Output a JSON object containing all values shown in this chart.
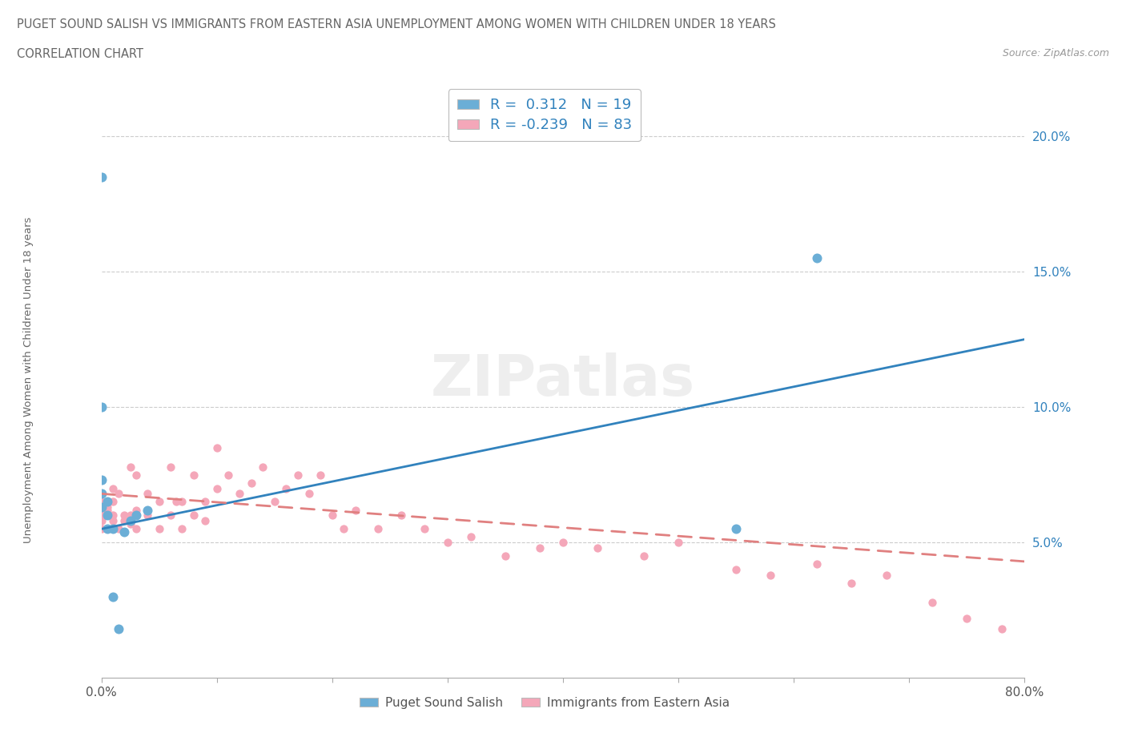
{
  "title_line1": "PUGET SOUND SALISH VS IMMIGRANTS FROM EASTERN ASIA UNEMPLOYMENT AMONG WOMEN WITH CHILDREN UNDER 18 YEARS",
  "title_line2": "CORRELATION CHART",
  "source": "Source: ZipAtlas.com",
  "ylabel": "Unemployment Among Women with Children Under 18 years",
  "yticks": [
    "20.0%",
    "15.0%",
    "10.0%",
    "5.0%"
  ],
  "ytick_vals": [
    0.2,
    0.15,
    0.1,
    0.05
  ],
  "xlim": [
    0.0,
    0.8
  ],
  "ylim": [
    0.0,
    0.22
  ],
  "legend_blue_label": "R =  0.312   N = 19",
  "legend_pink_label": "R = -0.239   N = 83",
  "legend_bottom_blue": "Puget Sound Salish",
  "legend_bottom_pink": "Immigrants from Eastern Asia",
  "watermark": "ZIPatlas",
  "blue_color": "#6baed6",
  "pink_color": "#f4a7b9",
  "trendline_blue_color": "#3182bd",
  "trendline_pink_color": "#e08080",
  "blue_scatter_x": [
    0.0,
    0.0,
    0.0,
    0.0,
    0.0,
    0.005,
    0.005,
    0.005,
    0.01,
    0.01,
    0.015,
    0.02,
    0.025,
    0.03,
    0.04,
    0.55,
    0.62
  ],
  "blue_scatter_y": [
    0.063,
    0.068,
    0.073,
    0.1,
    0.185,
    0.055,
    0.06,
    0.065,
    0.055,
    0.03,
    0.018,
    0.054,
    0.058,
    0.06,
    0.062,
    0.055,
    0.155
  ],
  "pink_scatter_x": [
    0.0,
    0.0,
    0.0,
    0.0,
    0.0,
    0.0,
    0.005,
    0.005,
    0.005,
    0.005,
    0.01,
    0.01,
    0.01,
    0.01,
    0.015,
    0.015,
    0.02,
    0.02,
    0.025,
    0.025,
    0.025,
    0.03,
    0.03,
    0.03,
    0.04,
    0.04,
    0.04,
    0.05,
    0.05,
    0.06,
    0.06,
    0.065,
    0.07,
    0.07,
    0.08,
    0.08,
    0.09,
    0.09,
    0.1,
    0.1,
    0.11,
    0.12,
    0.13,
    0.14,
    0.15,
    0.16,
    0.17,
    0.18,
    0.19,
    0.2,
    0.21,
    0.22,
    0.24,
    0.26,
    0.28,
    0.3,
    0.32,
    0.35,
    0.38,
    0.4,
    0.43,
    0.47,
    0.5,
    0.55,
    0.58,
    0.62,
    0.65,
    0.68,
    0.72,
    0.75,
    0.78
  ],
  "pink_scatter_y": [
    0.055,
    0.058,
    0.06,
    0.062,
    0.065,
    0.068,
    0.06,
    0.062,
    0.063,
    0.065,
    0.058,
    0.06,
    0.065,
    0.07,
    0.055,
    0.068,
    0.058,
    0.06,
    0.057,
    0.06,
    0.078,
    0.055,
    0.062,
    0.075,
    0.06,
    0.062,
    0.068,
    0.055,
    0.065,
    0.06,
    0.078,
    0.065,
    0.055,
    0.065,
    0.06,
    0.075,
    0.058,
    0.065,
    0.07,
    0.085,
    0.075,
    0.068,
    0.072,
    0.078,
    0.065,
    0.07,
    0.075,
    0.068,
    0.075,
    0.06,
    0.055,
    0.062,
    0.055,
    0.06,
    0.055,
    0.05,
    0.052,
    0.045,
    0.048,
    0.05,
    0.048,
    0.045,
    0.05,
    0.04,
    0.038,
    0.042,
    0.035,
    0.038,
    0.028,
    0.022,
    0.018
  ],
  "blue_trendline_x": [
    0.0,
    0.8
  ],
  "blue_trendline_y": [
    0.055,
    0.125
  ],
  "pink_trendline_x": [
    0.0,
    0.8
  ],
  "pink_trendline_y": [
    0.068,
    0.043
  ]
}
